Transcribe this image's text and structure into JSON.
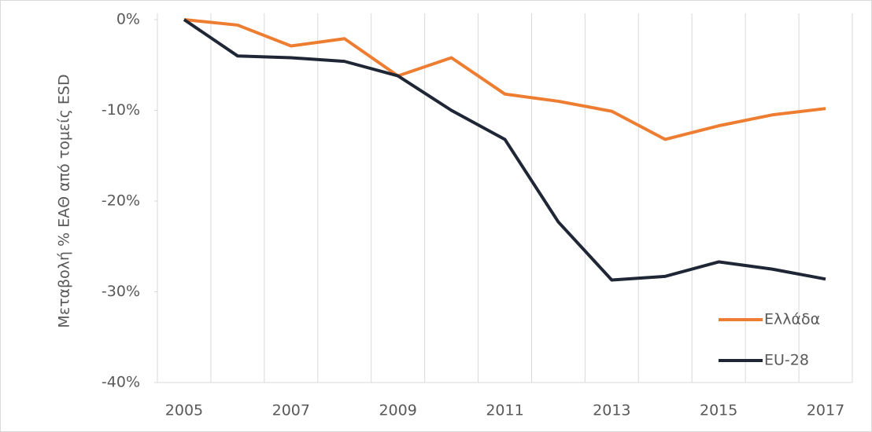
{
  "chart_data": {
    "type": "line",
    "y_label": "Μεταβολή % ΕΑΘ από τομείς ESD",
    "categories": [
      "2005",
      null,
      "2007",
      null,
      "2009",
      null,
      "2011",
      null,
      "2013",
      null,
      "2015",
      null,
      "2017"
    ],
    "series": [
      {
        "name": "Ελλάδα",
        "color": "#ed7d31",
        "values": [
          0,
          -0.6,
          -2.9,
          -2.1,
          -6.2,
          -4.2,
          -8.2,
          -9.0,
          -10.1,
          -13.2,
          -11.7,
          -10.5,
          -9.8
        ]
      },
      {
        "name": "EU-28",
        "color": "#1f2635",
        "values": [
          0,
          -4.0,
          -4.2,
          -4.6,
          -6.2,
          -10.0,
          -13.2,
          -22.3,
          -28.7,
          -28.3,
          -26.7,
          -27.5,
          -28.6
        ]
      }
    ],
    "ylim": [
      -40,
      0
    ],
    "yticks": [
      {
        "value": -40,
        "label": "-40%"
      },
      {
        "value": -30,
        "label": "-30%"
      },
      {
        "value": -20,
        "label": "-20%"
      },
      {
        "value": -10,
        "label": "-10%"
      },
      {
        "value": 0,
        "label": "0%"
      }
    ],
    "grid": true,
    "legend": "lower right"
  }
}
